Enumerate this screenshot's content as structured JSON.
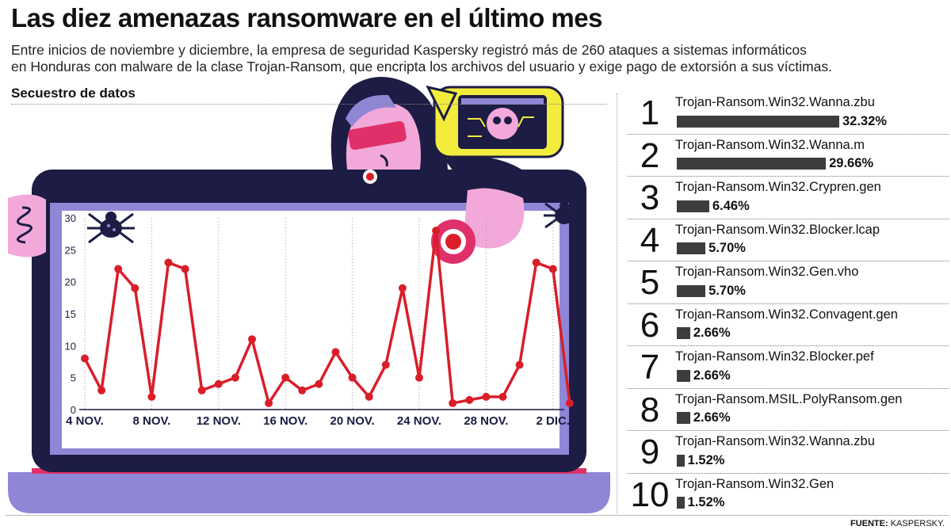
{
  "header": {
    "title": "Las diez amenazas ransomware en el último mes",
    "subtitle_line1": "Entre inicios de noviembre y diciembre, la empresa de seguridad Kaspersky registró más de 260 ataques a sistemas informáticos",
    "subtitle_line2": "en Honduras con malware de la clase Trojan-Ransom, que encripta los archivos del usuario y exige pago de extorsión a sus víctimas.",
    "section_label": "Secuestro de datos"
  },
  "colors": {
    "line": "#d91e2a",
    "laptop_frame": "#1c1c44",
    "laptop_screen_border": "#8f86d6",
    "laptop_base": "#8f86d6",
    "bar": "#3d3d3d",
    "skin": "#f2a9d9",
    "hood": "#1c1c44",
    "monitor_bubble": "#f2ec3d"
  },
  "icons": [
    "hacker-figure-icon",
    "spider-icon",
    "skull-monitor-icon",
    "alarm-button-icon",
    "spring-icon"
  ],
  "chart_data": {
    "type": "line",
    "xlabel": "",
    "ylabel": "",
    "ylim": [
      0,
      30
    ],
    "yticks": [
      0,
      5,
      10,
      15,
      20,
      25,
      30
    ],
    "x_ticks": [
      "4 NOV.",
      "8 NOV.",
      "12 NOV.",
      "16 NOV.",
      "20 NOV.",
      "24 NOV.",
      "28 NOV.",
      "2 DIC."
    ],
    "x_tick_index": [
      0,
      4,
      8,
      12,
      16,
      20,
      24,
      28
    ],
    "grid": "vertical dotted",
    "series": [
      {
        "values": [
          8,
          3,
          22,
          19,
          2,
          23,
          22,
          3,
          4,
          5,
          11,
          1,
          5,
          3,
          4,
          9,
          5,
          2,
          7,
          19,
          5,
          28,
          1,
          1.5,
          2,
          2,
          7,
          23,
          22,
          1
        ]
      }
    ]
  },
  "ranking": [
    {
      "rank": "1",
      "name": "Trojan-Ransom.Win32.Wanna.zbu",
      "pct": "32.32%",
      "value": 32.32
    },
    {
      "rank": "2",
      "name": "Trojan-Ransom.Win32.Wanna.m",
      "pct": "29.66%",
      "value": 29.66
    },
    {
      "rank": "3",
      "name": "Trojan-Ransom.Win32.Crypren.gen",
      "pct": "6.46%",
      "value": 6.46
    },
    {
      "rank": "4",
      "name": "Trojan-Ransom.Win32.Blocker.lcap",
      "pct": "5.70%",
      "value": 5.7
    },
    {
      "rank": "5",
      "name": "Trojan-Ransom.Win32.Gen.vho",
      "pct": "5.70%",
      "value": 5.7
    },
    {
      "rank": "6",
      "name": "Trojan-Ransom.Win32.Convagent.gen",
      "pct": "2.66%",
      "value": 2.66
    },
    {
      "rank": "7",
      "name": "Trojan-Ransom.Win32.Blocker.pef",
      "pct": "2.66%",
      "value": 2.66
    },
    {
      "rank": "8",
      "name": "Trojan-Ransom.MSIL.PolyRansom.gen",
      "pct": "2.66%",
      "value": 2.66
    },
    {
      "rank": "9",
      "name": "Trojan-Ransom.Win32.Wanna.zbu",
      "pct": "1.52%",
      "value": 1.52
    },
    {
      "rank": "10",
      "name": "Trojan-Ransom.Win32.Gen",
      "pct": "1.52%",
      "value": 1.52
    }
  ],
  "footer": {
    "source_label": "FUENTE:",
    "source_name": "KASPERSKY."
  }
}
